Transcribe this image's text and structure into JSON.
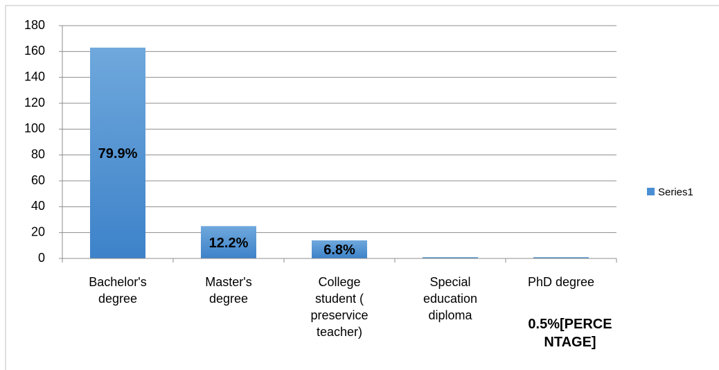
{
  "chart_data": {
    "type": "bar",
    "categories": [
      "Bachelor's degree",
      "Master's degree",
      "College student ( preservice teacher)",
      "Special education diploma",
      "PhD degree"
    ],
    "series": [
      {
        "name": "Series1",
        "color": "#4a8fd4",
        "values": [
          163,
          25,
          14,
          1,
          1
        ],
        "value_labels": [
          "79.9%",
          "12.2%",
          "6.8%",
          null,
          "0.5%[PERCENTAGE]"
        ]
      }
    ],
    "ylim": [
      0,
      180
    ],
    "yticks": [
      0,
      20,
      40,
      60,
      80,
      100,
      120,
      140,
      160,
      180
    ],
    "grid": true,
    "legend": "right"
  }
}
